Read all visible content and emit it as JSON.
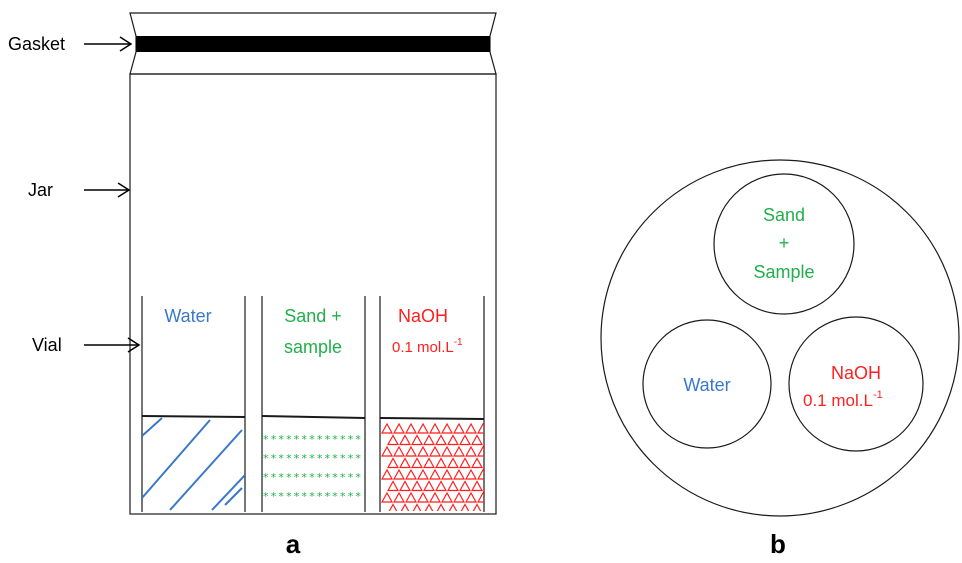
{
  "labels": {
    "gasket": "Gasket",
    "jar": "Jar",
    "vial": "Vial"
  },
  "panel_a": {
    "letter": "a",
    "vials": [
      {
        "name": "Water",
        "color": "#3a78c8",
        "lines": [
          "Water"
        ],
        "sub": ""
      },
      {
        "name": "Sand + sample",
        "color": "#20b04a",
        "lines": [
          "Sand +",
          "sample"
        ],
        "sub": ""
      },
      {
        "name": "NaOH",
        "color": "#ff1f1f",
        "lines": [
          "NaOH",
          "0.1 mol.L"
        ],
        "sub": "-1"
      }
    ]
  },
  "panel_b": {
    "letter": "b",
    "circles": [
      {
        "lines": [
          "Sand",
          "+",
          "Sample"
        ],
        "sup": "",
        "color": "#20b04a"
      },
      {
        "lines": [
          "Water"
        ],
        "sup": "",
        "color": "#3a78c8"
      },
      {
        "lines": [
          "NaOH",
          "0.1 mol.L"
        ],
        "sup": "-1",
        "color": "#ff1f1f"
      }
    ]
  },
  "colors": {
    "water": "#3a78c8",
    "sand": "#20b04a",
    "naoh": "#ff1f1f",
    "outline": "#1a1a1a"
  }
}
